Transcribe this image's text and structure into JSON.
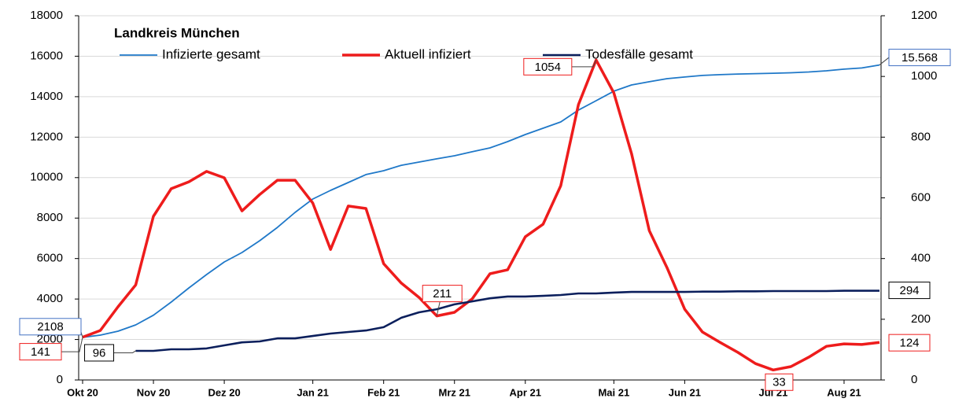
{
  "chart_data": {
    "type": "line",
    "title": "Landkreis München",
    "categories": [
      "Okt 20",
      null,
      null,
      null,
      "Nov 20",
      null,
      null,
      null,
      "Dez 20",
      null,
      null,
      null,
      null,
      "Jan 21",
      null,
      null,
      null,
      "Feb 21",
      null,
      null,
      null,
      "Mrz 21",
      null,
      null,
      null,
      "Apr 21",
      null,
      null,
      null,
      null,
      "Mai 21",
      null,
      null,
      null,
      "Jun 21",
      null,
      null,
      null,
      null,
      "Jul 21",
      null,
      null,
      null,
      "Aug 21",
      null,
      null
    ],
    "ylim": [
      0,
      18000
    ],
    "yticks": [
      0,
      2000,
      4000,
      6000,
      8000,
      10000,
      12000,
      14000,
      16000,
      18000
    ],
    "y2lim": [
      0,
      1200
    ],
    "y2ticks": [
      0,
      200,
      400,
      600,
      800,
      1000,
      1200
    ],
    "grid": true,
    "series": [
      {
        "name": "Infizierte gesamt",
        "color": "#1f78c8",
        "axis": "y",
        "values": [
          2108,
          2216,
          2410,
          2720,
          3200,
          3850,
          4550,
          5210,
          5830,
          6300,
          6880,
          7540,
          8280,
          8940,
          9370,
          9760,
          10150,
          10340,
          10610,
          10770,
          10930,
          11080,
          11280,
          11470,
          11780,
          12130,
          12440,
          12750,
          13340,
          13800,
          14270,
          14580,
          14740,
          14890,
          14970,
          15050,
          15090,
          15120,
          15140,
          15160,
          15180,
          15220,
          15280,
          15360,
          15420,
          15568
        ],
        "value_labels": [
          "2108",
          null,
          null,
          null,
          null,
          null,
          null,
          null,
          null,
          null,
          null,
          null,
          null,
          null,
          null,
          null,
          null,
          null,
          null,
          null,
          null,
          null,
          null,
          null,
          null,
          null,
          null,
          null,
          null,
          null,
          null,
          null,
          null,
          null,
          null,
          null,
          null,
          null,
          null,
          null,
          null,
          null,
          null,
          null,
          null,
          "15.568"
        ]
      },
      {
        "name": "Aktuell infiziert",
        "color": "#ee1c1c",
        "axis": "y2",
        "values": [
          141,
          163,
          241,
          313,
          539,
          630,
          653,
          687,
          666,
          557,
          611,
          658,
          658,
          583,
          430,
          573,
          565,
          383,
          319,
          272,
          211,
          223,
          267,
          350,
          363,
          472,
          513,
          640,
          907,
          1054,
          946,
          746,
          492,
          370,
          233,
          158,
          124,
          91,
          54,
          33,
          44,
          75,
          111,
          119,
          117,
          124
        ],
        "value_labels": [
          "141",
          null,
          null,
          null,
          null,
          null,
          null,
          null,
          null,
          null,
          null,
          null,
          null,
          null,
          null,
          null,
          null,
          null,
          null,
          null,
          "211",
          null,
          null,
          null,
          null,
          null,
          null,
          null,
          null,
          "1054",
          null,
          null,
          null,
          null,
          null,
          null,
          null,
          null,
          null,
          "33",
          null,
          null,
          null,
          null,
          null,
          "124"
        ]
      },
      {
        "name": "Todesfälle gesamt",
        "color": "#0b1f5c",
        "axis": "y2",
        "values": [
          null,
          null,
          null,
          96,
          96,
          101,
          101,
          104,
          114,
          124,
          127,
          137,
          137,
          145,
          153,
          158,
          163,
          174,
          205,
          223,
          233,
          249,
          259,
          269,
          275,
          275,
          277,
          280,
          285,
          285,
          288,
          290,
          290,
          290,
          290,
          291,
          291,
          292,
          292,
          293,
          293,
          293,
          293,
          294,
          294,
          294
        ],
        "value_labels": [
          null,
          null,
          null,
          "96",
          null,
          null,
          null,
          null,
          null,
          null,
          null,
          null,
          null,
          null,
          null,
          null,
          null,
          null,
          null,
          null,
          null,
          null,
          null,
          null,
          null,
          null,
          null,
          null,
          null,
          null,
          null,
          null,
          null,
          null,
          null,
          null,
          null,
          null,
          null,
          null,
          null,
          null,
          null,
          null,
          null,
          "294"
        ]
      }
    ]
  }
}
